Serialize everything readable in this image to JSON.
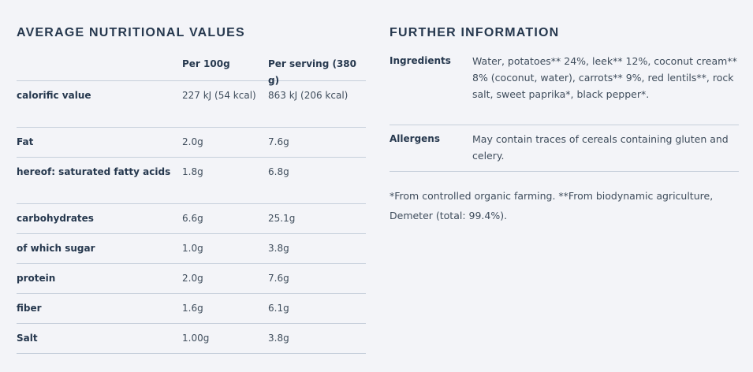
{
  "nutrition": {
    "title": "AVERAGE NUTRITIONAL VALUES",
    "headers": [
      "",
      "Per 100g",
      "Per serving (380 g)"
    ],
    "rows": [
      {
        "name": "calorific value",
        "per100": "227 kJ (54 kcal)",
        "serving": "863 kJ (206 kcal)"
      },
      {
        "name": "Fat",
        "per100": "2.0g",
        "serving": "7.6g"
      },
      {
        "name": "hereof: saturated fatty acids",
        "per100": "1.8g",
        "serving": "6.8g"
      },
      {
        "name": "carbohydrates",
        "per100": "6.6g",
        "serving": "25.1g"
      },
      {
        "name": "of which sugar",
        "per100": "1.0g",
        "serving": "3.8g"
      },
      {
        "name": "protein",
        "per100": "2.0g",
        "serving": "7.6g"
      },
      {
        "name": "fiber",
        "per100": "1.6g",
        "serving": "6.1g"
      },
      {
        "name": "Salt",
        "per100": "1.00g",
        "serving": "3.8g"
      }
    ]
  },
  "info": {
    "title": "FURTHER INFORMATION",
    "ingredients_label": "Ingredients",
    "ingredients_text": "Water, potatoes** 24%, leek** 12%, coconut cream** 8% (coconut, water), carrots** 9%, red lentils**, rock salt, sweet paprika*, black pepper*.",
    "allergens_label": "Allergens",
    "allergens_text": "May contain traces of cereals containing gluten and celery.",
    "footnote": "*From controlled organic farming. **From biodynamic agriculture, Demeter (total: 99.4%)."
  },
  "colors": {
    "background": "#f3f4f8",
    "heading": "#26384e",
    "text": "#3f4d5c",
    "divider": "#c6cfdb"
  }
}
